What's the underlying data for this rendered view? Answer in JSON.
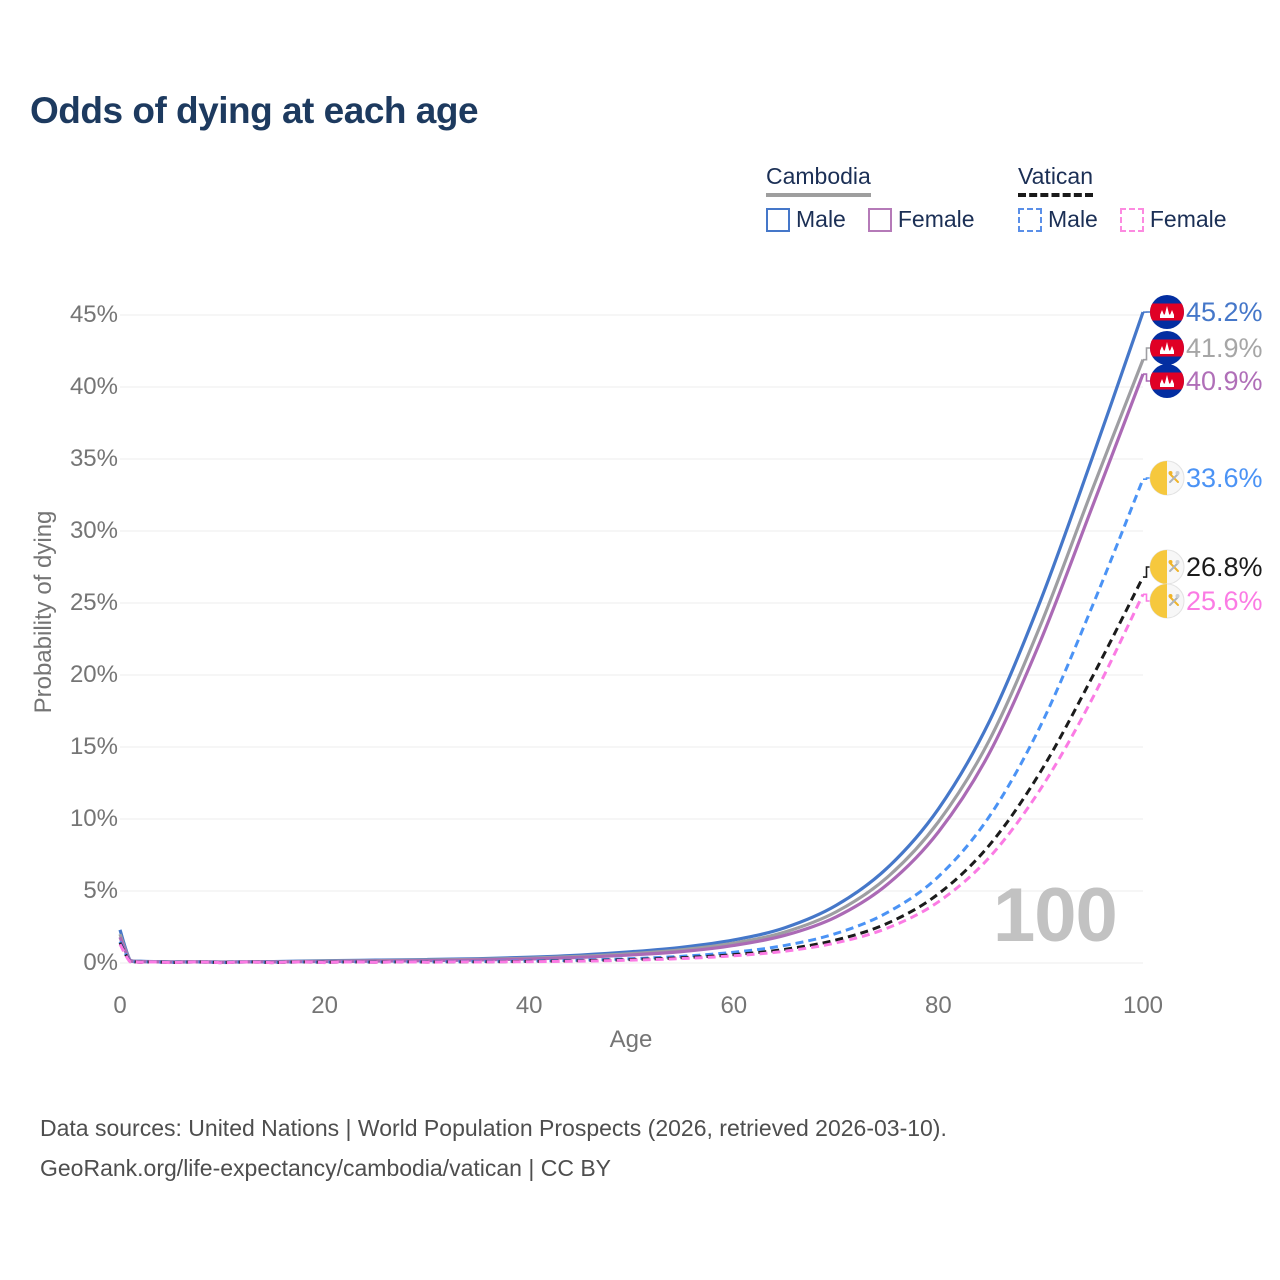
{
  "title": "Odds of dying at each age",
  "watermark": "100",
  "legend": {
    "groups": [
      {
        "name": "Cambodia",
        "line": "solid",
        "underline_color": "#9e9e9e",
        "items": [
          {
            "label": "Male",
            "color": "#4577c9"
          },
          {
            "label": "Female",
            "color": "#b57ab8"
          }
        ]
      },
      {
        "name": "Vatican",
        "line": "dashed",
        "underline_color": "#1a1a1a",
        "items": [
          {
            "label": "Male",
            "color": "#5a8fe8"
          },
          {
            "label": "Female",
            "color": "#fc8ae0"
          }
        ]
      }
    ]
  },
  "source": {
    "line1": "Data sources: United Nations | World Population Prospects (2026, retrieved 2026-03-10).",
    "line2": "GeoRank.org/life-expectancy/cambodia/vatican | CC BY"
  },
  "chart_data": {
    "type": "line",
    "title": "Odds of dying at each age",
    "xlabel": "Age",
    "ylabel": "Probability of dying",
    "xlim": [
      0,
      100
    ],
    "ylim": [
      0,
      45
    ],
    "x_ticks": [
      0,
      20,
      40,
      60,
      80,
      100
    ],
    "y_ticks_percent": [
      0,
      5,
      10,
      15,
      20,
      25,
      30,
      35,
      40,
      45
    ],
    "grid": "horizontal",
    "legend_position": "top-right",
    "ages": [
      0,
      1,
      2,
      5,
      10,
      15,
      20,
      25,
      30,
      35,
      40,
      45,
      50,
      55,
      60,
      65,
      70,
      75,
      80,
      85,
      90,
      95,
      100
    ],
    "series": [
      {
        "name": "Cambodia Male",
        "country": "Cambodia",
        "sex": "Male",
        "line": "solid",
        "color": "#4577c9",
        "flag": "cambodia",
        "end_label": "45.2%",
        "label_color": "#4577c9",
        "values": [
          2.3,
          0.18,
          0.12,
          0.08,
          0.07,
          0.1,
          0.16,
          0.2,
          0.24,
          0.3,
          0.4,
          0.55,
          0.78,
          1.1,
          1.6,
          2.45,
          4.0,
          6.6,
          10.7,
          16.8,
          25.2,
          35.0,
          45.2
        ]
      },
      {
        "name": "Cambodia Both sexes",
        "country": "Cambodia",
        "sex": "Both",
        "line": "solid",
        "color": "#9e9ea2",
        "flag": "cambodia",
        "end_label": "41.9%",
        "label_color": "#a6a6a6",
        "values": [
          2.0,
          0.16,
          0.1,
          0.07,
          0.06,
          0.08,
          0.13,
          0.16,
          0.2,
          0.25,
          0.33,
          0.46,
          0.65,
          0.92,
          1.38,
          2.15,
          3.55,
          5.95,
          9.8,
          15.5,
          23.5,
          32.8,
          41.9
        ]
      },
      {
        "name": "Cambodia Female",
        "country": "Cambodia",
        "sex": "Female",
        "line": "solid",
        "color": "#ab6ab5",
        "flag": "cambodia",
        "end_label": "40.9%",
        "label_color": "#b06fb8",
        "values": [
          1.8,
          0.14,
          0.09,
          0.06,
          0.05,
          0.07,
          0.1,
          0.13,
          0.16,
          0.21,
          0.28,
          0.39,
          0.56,
          0.8,
          1.22,
          1.92,
          3.2,
          5.45,
          9.1,
          14.6,
          22.4,
          31.6,
          40.9
        ]
      },
      {
        "name": "Vatican Male",
        "country": "Vatican",
        "sex": "Male",
        "line": "dashed",
        "color": "#4b93f5",
        "flag": "vatican",
        "end_label": "33.6%",
        "label_color": "#4b93f5",
        "values": [
          1.5,
          0.1,
          0.05,
          0.03,
          0.02,
          0.03,
          0.05,
          0.06,
          0.08,
          0.1,
          0.14,
          0.2,
          0.3,
          0.47,
          0.75,
          1.22,
          2.05,
          3.5,
          6.0,
          10.2,
          16.5,
          24.7,
          33.6
        ]
      },
      {
        "name": "Vatican Both sexes",
        "country": "Vatican",
        "sex": "Both",
        "line": "dashed",
        "color": "#1b1b1b",
        "flag": "vatican",
        "end_label": "26.8%",
        "label_color": "#1b1b1b",
        "values": [
          1.4,
          0.09,
          0.04,
          0.02,
          0.02,
          0.02,
          0.04,
          0.05,
          0.06,
          0.08,
          0.11,
          0.16,
          0.24,
          0.37,
          0.58,
          0.95,
          1.6,
          2.75,
          4.8,
          8.2,
          13.3,
          19.8,
          26.8
        ]
      },
      {
        "name": "Vatican Female",
        "country": "Vatican",
        "sex": "Female",
        "line": "dashed",
        "color": "#fb7be4",
        "flag": "vatican",
        "end_label": "25.6%",
        "label_color": "#fb7be4",
        "values": [
          1.3,
          0.08,
          0.04,
          0.02,
          0.01,
          0.02,
          0.03,
          0.04,
          0.05,
          0.07,
          0.09,
          0.13,
          0.2,
          0.31,
          0.5,
          0.82,
          1.4,
          2.42,
          4.25,
          7.35,
          12.1,
          18.3,
          25.6
        ]
      }
    ]
  }
}
